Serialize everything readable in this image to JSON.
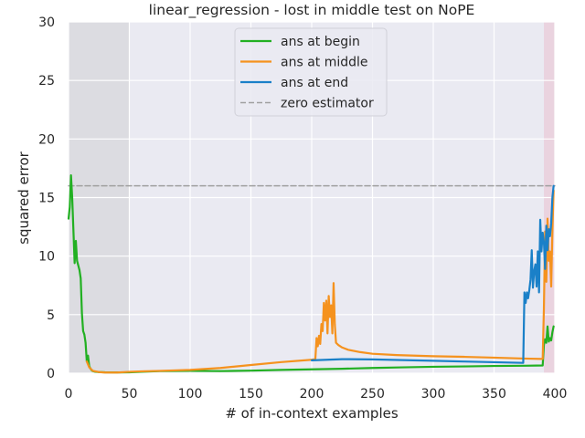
{
  "chart_data": {
    "type": "line",
    "title": "linear_regression - lost in middle test on NoPE",
    "xlabel": "# of in-context examples",
    "ylabel": "squared error",
    "xlim": [
      0,
      400
    ],
    "ylim": [
      0,
      30
    ],
    "x_ticks": [
      "0",
      "50",
      "100",
      "150",
      "200",
      "250",
      "300",
      "350",
      "400"
    ],
    "y_ticks": [
      "0",
      "5",
      "10",
      "15",
      "20",
      "25",
      "30"
    ],
    "grid": true,
    "legend_position": "upper center",
    "shaded_regions": [
      {
        "x0": 0,
        "x1": 50,
        "color": "#dcdce1"
      },
      {
        "x0": 391,
        "x1": 400,
        "color": "#ead3df"
      }
    ],
    "series": [
      {
        "name": "ans at begin",
        "color": "#22b022",
        "points": [
          [
            0,
            13.2
          ],
          [
            1,
            14.2
          ],
          [
            2,
            16.9
          ],
          [
            3,
            15.0
          ],
          [
            4,
            12.2
          ],
          [
            5,
            9.4
          ],
          [
            6,
            11.3
          ],
          [
            7,
            9.6
          ],
          [
            8,
            9.2
          ],
          [
            9,
            8.8
          ],
          [
            10,
            8.1
          ],
          [
            11,
            5.1
          ],
          [
            12,
            3.6
          ],
          [
            13,
            3.3
          ],
          [
            14,
            2.6
          ],
          [
            15,
            1.0
          ],
          [
            16,
            1.5
          ],
          [
            17,
            0.6
          ],
          [
            18,
            0.4
          ],
          [
            19,
            0.25
          ],
          [
            20,
            0.18
          ],
          [
            22,
            0.12
          ],
          [
            25,
            0.1
          ],
          [
            30,
            0.08
          ],
          [
            40,
            0.07
          ],
          [
            50,
            0.08
          ],
          [
            60,
            0.12
          ],
          [
            75,
            0.18
          ],
          [
            100,
            0.2
          ],
          [
            125,
            0.18
          ],
          [
            150,
            0.22
          ],
          [
            175,
            0.28
          ],
          [
            200,
            0.33
          ],
          [
            225,
            0.38
          ],
          [
            250,
            0.45
          ],
          [
            275,
            0.5
          ],
          [
            300,
            0.55
          ],
          [
            325,
            0.58
          ],
          [
            350,
            0.62
          ],
          [
            375,
            0.64
          ],
          [
            390,
            0.66
          ],
          [
            391,
            2.4
          ],
          [
            392,
            2.9
          ],
          [
            393,
            2.6
          ],
          [
            394,
            4.0
          ],
          [
            395,
            2.7
          ],
          [
            396,
            3.0
          ],
          [
            397,
            2.8
          ],
          [
            398,
            3.5
          ],
          [
            399,
            4.0
          ]
        ]
      },
      {
        "name": "ans at middle",
        "color": "#f5921e",
        "points": [
          [
            15,
            1.0
          ],
          [
            17,
            0.5
          ],
          [
            20,
            0.2
          ],
          [
            25,
            0.1
          ],
          [
            30,
            0.06
          ],
          [
            40,
            0.06
          ],
          [
            50,
            0.12
          ],
          [
            60,
            0.16
          ],
          [
            75,
            0.2
          ],
          [
            100,
            0.28
          ],
          [
            125,
            0.45
          ],
          [
            150,
            0.7
          ],
          [
            175,
            0.95
          ],
          [
            200,
            1.15
          ],
          [
            203,
            1.2
          ],
          [
            204,
            3.0
          ],
          [
            205,
            2.3
          ],
          [
            206,
            3.2
          ],
          [
            207,
            2.5
          ],
          [
            208,
            4.2
          ],
          [
            209,
            3.6
          ],
          [
            210,
            6.0
          ],
          [
            211,
            4.5
          ],
          [
            212,
            6.2
          ],
          [
            213,
            3.4
          ],
          [
            214,
            6.6
          ],
          [
            215,
            4.8
          ],
          [
            216,
            5.8
          ],
          [
            217,
            3.4
          ],
          [
            218,
            7.7
          ],
          [
            219,
            4.2
          ],
          [
            220,
            2.6
          ],
          [
            222,
            2.4
          ],
          [
            225,
            2.2
          ],
          [
            230,
            2.0
          ],
          [
            240,
            1.8
          ],
          [
            250,
            1.66
          ],
          [
            270,
            1.55
          ],
          [
            300,
            1.45
          ],
          [
            325,
            1.4
          ],
          [
            350,
            1.33
          ],
          [
            375,
            1.25
          ],
          [
            390,
            1.22
          ],
          [
            391,
            5.5
          ],
          [
            392,
            12.1
          ],
          [
            393,
            7.8
          ],
          [
            394,
            13.2
          ],
          [
            395,
            9.6
          ],
          [
            396,
            10.4
          ],
          [
            397,
            7.4
          ],
          [
            398,
            12.2
          ],
          [
            399,
            15.6
          ]
        ]
      },
      {
        "name": "ans at end",
        "color": "#1a80c8",
        "points": [
          [
            200,
            1.1
          ],
          [
            225,
            1.2
          ],
          [
            250,
            1.18
          ],
          [
            275,
            1.12
          ],
          [
            300,
            1.06
          ],
          [
            325,
            1.0
          ],
          [
            350,
            0.94
          ],
          [
            374,
            0.88
          ],
          [
            375,
            6.9
          ],
          [
            376,
            6.0
          ],
          [
            377,
            6.9
          ],
          [
            378,
            6.4
          ],
          [
            379,
            7.1
          ],
          [
            380,
            8.0
          ],
          [
            381,
            10.5
          ],
          [
            382,
            7.3
          ],
          [
            383,
            8.7
          ],
          [
            384,
            9.3
          ],
          [
            385,
            7.4
          ],
          [
            386,
            10.4
          ],
          [
            387,
            6.9
          ],
          [
            388,
            13.1
          ],
          [
            389,
            10.4
          ],
          [
            390,
            12.0
          ],
          [
            391,
            11.2
          ],
          [
            392,
            8.9
          ],
          [
            393,
            12.6
          ],
          [
            394,
            10.5
          ],
          [
            395,
            12.3
          ],
          [
            396,
            11.7
          ],
          [
            397,
            12.8
          ],
          [
            398,
            15.0
          ],
          [
            399,
            16.0
          ]
        ]
      },
      {
        "name": "zero estimator",
        "color": "#a0a0a0",
        "dashed": true,
        "points": [
          [
            0,
            16.0
          ],
          [
            400,
            16.0
          ]
        ]
      }
    ]
  }
}
